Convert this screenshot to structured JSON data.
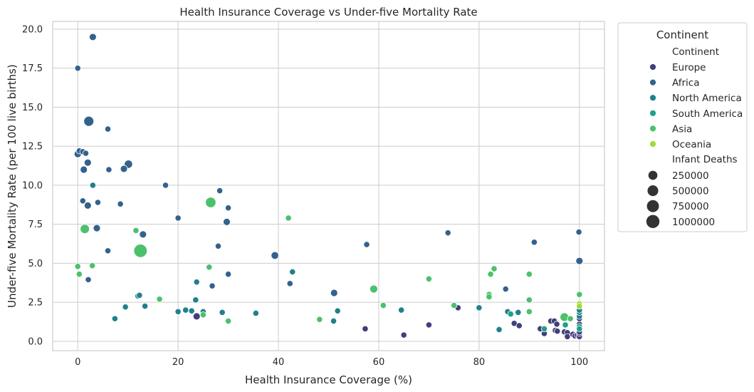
{
  "chart_data": {
    "type": "scatter",
    "title": "Health Insurance Coverage vs Under-five Mortality Rate",
    "xlabel": "Health Insurance Coverage (%)",
    "ylabel": "Under-five Mortality Rate (per 100 live births)",
    "xlim": [
      -5,
      105
    ],
    "ylim": [
      -0.6,
      20.5
    ],
    "xticks": [
      0,
      20,
      40,
      60,
      80,
      100
    ],
    "yticks": [
      0.0,
      2.5,
      5.0,
      7.5,
      10.0,
      12.5,
      15.0,
      17.5,
      20.0
    ],
    "xtick_labels": [
      "0",
      "20",
      "40",
      "60",
      "80",
      "100"
    ],
    "ytick_labels": [
      "0.0",
      "2.5",
      "5.0",
      "7.5",
      "10.0",
      "12.5",
      "15.0",
      "17.5",
      "20.0"
    ],
    "grid": true,
    "legend": {
      "title": "Continent",
      "placement": "outside-top-right",
      "hue_title": "Continent",
      "size_title": "Infant Deaths",
      "size_labels": [
        "250000",
        "500000",
        "750000",
        "1000000"
      ],
      "size_values": [
        250000,
        500000,
        750000,
        1000000
      ]
    },
    "series": [
      {
        "name": "Europe",
        "color": "#403f7d",
        "points": [
          [
            23.7,
            1.6,
            60000
          ],
          [
            57.3,
            0.8,
            40000
          ],
          [
            65,
            0.4,
            40000
          ],
          [
            70,
            1.05,
            40000
          ],
          [
            75.8,
            2.15,
            40000
          ],
          [
            87,
            1.15,
            40000
          ],
          [
            88,
            1.0,
            40000
          ],
          [
            92.2,
            0.8,
            40000
          ],
          [
            93,
            0.5,
            40000
          ],
          [
            94.3,
            1.3,
            40000
          ],
          [
            95,
            1.3,
            40000
          ],
          [
            95.5,
            1.1,
            40000
          ],
          [
            95.2,
            0.7,
            40000
          ],
          [
            95.6,
            0.65,
            40000
          ],
          [
            97,
            0.6,
            40000
          ],
          [
            97.6,
            0.55,
            40000
          ],
          [
            97.6,
            0.3,
            40000
          ],
          [
            98.7,
            0.45,
            40000
          ],
          [
            99.1,
            0.35,
            40000
          ],
          [
            99.6,
            0.4,
            40000
          ],
          [
            100,
            0.3,
            40000
          ],
          [
            100,
            0.5,
            40000
          ],
          [
            100,
            0.6,
            40000
          ],
          [
            100,
            1.1,
            40000
          ],
          [
            100,
            1.45,
            40000
          ]
        ]
      },
      {
        "name": "Africa",
        "color": "#33628d",
        "points": [
          [
            3,
            19.5,
            60000
          ],
          [
            0,
            17.5,
            40000
          ],
          [
            2.2,
            14.1,
            300000
          ],
          [
            6,
            13.6,
            40000
          ],
          [
            0,
            12.0,
            60000
          ],
          [
            0.3,
            12.2,
            40000
          ],
          [
            1,
            12.15,
            40000
          ],
          [
            1.6,
            12.05,
            40000
          ],
          [
            2,
            11.45,
            60000
          ],
          [
            1.2,
            11.0,
            60000
          ],
          [
            6.2,
            11.0,
            40000
          ],
          [
            9.2,
            11.05,
            60000
          ],
          [
            10.1,
            11.35,
            120000
          ],
          [
            17.5,
            10.0,
            40000
          ],
          [
            28.3,
            9.65,
            40000
          ],
          [
            1,
            9.0,
            40000
          ],
          [
            2,
            8.7,
            60000
          ],
          [
            4,
            8.9,
            40000
          ],
          [
            8.5,
            8.8,
            40000
          ],
          [
            20,
            7.9,
            40000
          ],
          [
            30,
            8.55,
            40000
          ],
          [
            29.7,
            7.65,
            60000
          ],
          [
            3.8,
            7.25,
            60000
          ],
          [
            13,
            6.85,
            60000
          ],
          [
            28,
            6.1,
            40000
          ],
          [
            6,
            5.8,
            40000
          ],
          [
            39.3,
            5.5,
            80000
          ],
          [
            57.6,
            6.2,
            40000
          ],
          [
            73.8,
            6.95,
            40000
          ],
          [
            91,
            6.35,
            40000
          ],
          [
            99.9,
            7.0,
            40000
          ],
          [
            100,
            5.15,
            60000
          ],
          [
            2.1,
            3.95,
            40000
          ],
          [
            30,
            4.3,
            40000
          ],
          [
            42.3,
            3.7,
            40000
          ],
          [
            26.8,
            3.55,
            40000
          ],
          [
            51.1,
            3.1,
            60000
          ],
          [
            85.3,
            3.35,
            40000
          ]
        ]
      },
      {
        "name": "North America",
        "color": "#21808d",
        "points": [
          [
            3,
            10.0,
            40000
          ],
          [
            42.8,
            4.45,
            40000
          ],
          [
            12,
            2.9,
            40000
          ],
          [
            12.3,
            2.95,
            40000
          ],
          [
            23.7,
            3.8,
            40000
          ],
          [
            23.5,
            2.65,
            40000
          ],
          [
            13.4,
            2.25,
            40000
          ],
          [
            9.5,
            2.2,
            40000
          ],
          [
            7.4,
            1.45,
            40000
          ],
          [
            20,
            1.9,
            40000
          ],
          [
            21.5,
            2.0,
            40000
          ],
          [
            22.7,
            1.95,
            40000
          ],
          [
            25,
            1.9,
            40000
          ],
          [
            28.8,
            1.85,
            40000
          ],
          [
            35.5,
            1.8,
            40000
          ],
          [
            51,
            1.3,
            40000
          ],
          [
            51.8,
            1.95,
            40000
          ],
          [
            64.5,
            2.0,
            40000
          ],
          [
            80,
            2.15,
            40000
          ],
          [
            84,
            0.75,
            40000
          ],
          [
            85.7,
            1.9,
            40000
          ],
          [
            87.8,
            1.85,
            40000
          ],
          [
            100,
            1.6,
            40000
          ],
          [
            100,
            1.85,
            40000
          ],
          [
            100,
            2.0,
            40000
          ]
        ]
      },
      {
        "name": "South America",
        "color": "#1fa187",
        "points": [
          [
            86.3,
            1.75,
            40000
          ],
          [
            93,
            0.8,
            40000
          ],
          [
            97.2,
            1.05,
            40000
          ],
          [
            100,
            0.95,
            40000
          ],
          [
            100,
            0.8,
            40000
          ]
        ]
      },
      {
        "name": "Asia",
        "color": "#4bc16b",
        "points": [
          [
            26.5,
            8.9,
            350000
          ],
          [
            42,
            7.9,
            40000
          ],
          [
            1.4,
            7.2,
            200000
          ],
          [
            11.6,
            7.1,
            40000
          ],
          [
            12.5,
            5.8,
            900000
          ],
          [
            0,
            4.8,
            40000
          ],
          [
            2.9,
            4.85,
            40000
          ],
          [
            26.2,
            4.75,
            40000
          ],
          [
            0.3,
            4.3,
            40000
          ],
          [
            70,
            4.0,
            40000
          ],
          [
            83,
            4.65,
            40000
          ],
          [
            82.3,
            4.3,
            40000
          ],
          [
            90,
            4.3,
            40000
          ],
          [
            59,
            3.35,
            100000
          ],
          [
            16.3,
            2.7,
            40000
          ],
          [
            82,
            3.0,
            40000
          ],
          [
            82,
            2.85,
            40000
          ],
          [
            90,
            2.65,
            40000
          ],
          [
            60.9,
            2.3,
            40000
          ],
          [
            75,
            2.3,
            40000
          ],
          [
            25,
            1.7,
            40000
          ],
          [
            30,
            1.3,
            40000
          ],
          [
            48.2,
            1.4,
            40000
          ],
          [
            90,
            1.9,
            40000
          ],
          [
            97,
            1.55,
            150000
          ],
          [
            98.2,
            1.45,
            40000
          ],
          [
            100,
            3.0,
            40000
          ]
        ]
      },
      {
        "name": "Oceania",
        "color": "#a0da39",
        "points": [
          [
            100,
            2.4,
            40000
          ],
          [
            100,
            2.25,
            40000
          ]
        ]
      }
    ]
  }
}
